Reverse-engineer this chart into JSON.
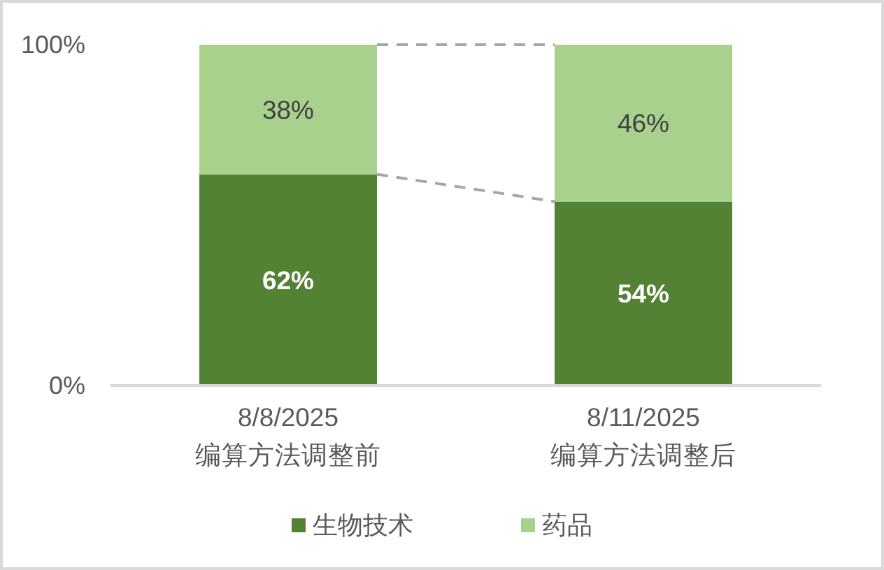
{
  "chart_data": {
    "type": "bar",
    "stacked": true,
    "categories": [
      "8/8/2025\n编算方法调整前",
      "8/11/2025\n编算方法调整后"
    ],
    "series": [
      {
        "name": "生物技术",
        "color": "#548235",
        "values": [
          62,
          54
        ],
        "value_labels": [
          "62%",
          "54%"
        ]
      },
      {
        "name": "药品",
        "color": "#a9d18e",
        "values": [
          38,
          46
        ],
        "value_labels": [
          "38%",
          "46%"
        ]
      }
    ],
    "ylim": [
      0,
      100
    ],
    "yticks": [
      {
        "value": 0,
        "label": "0%"
      },
      {
        "value": 100,
        "label": "100%"
      }
    ],
    "legend": "bottom"
  }
}
